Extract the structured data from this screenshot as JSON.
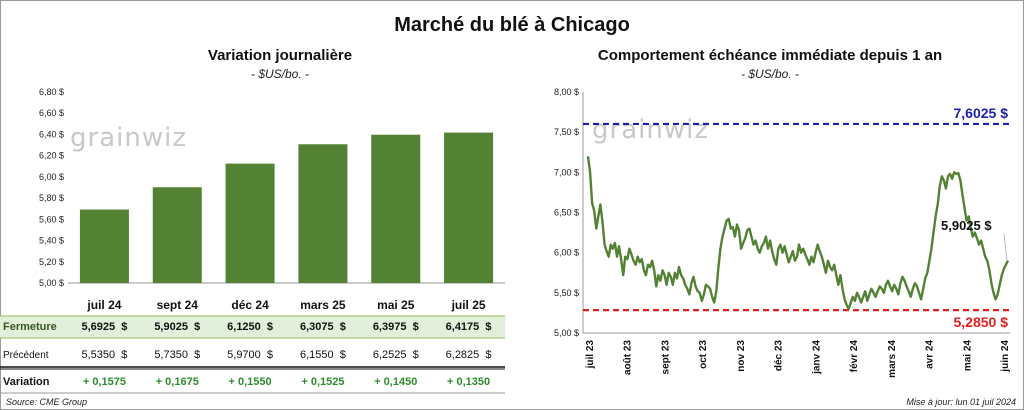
{
  "title": "Marché du blé à Chicago",
  "footer": {
    "source": "Source: CME Group",
    "update": "Mise à jour: lun 01 juil 2024"
  },
  "watermark": "grainwiz",
  "chart_data": [
    {
      "type": "bar",
      "title": "Variation journalière",
      "unit": "- $US/bo. -",
      "categories": [
        "juil 24",
        "sept 24",
        "déc 24",
        "mars 25",
        "mai 25",
        "juil 25"
      ],
      "values": [
        5.6925,
        5.9025,
        6.125,
        6.3075,
        6.3975,
        6.4175
      ],
      "ylim": [
        5.0,
        6.8
      ],
      "yticks": [
        "5,00 $",
        "5,20 $",
        "5,40 $",
        "5,60 $",
        "5,80 $",
        "6,00 $",
        "6,20 $",
        "6,40 $",
        "6,60 $",
        "6,80 $"
      ],
      "bar_color": "#548235",
      "table": {
        "rows": [
          {
            "label": "Fermeture",
            "values": [
              "5,6925  $",
              "5,9025  $",
              "6,1250  $",
              "6,3075  $",
              "6,3975  $",
              "6,4175  $"
            ]
          },
          {
            "label": "Précédent",
            "values": [
              "5,5350  $",
              "5,7350  $",
              "5,9700  $",
              "6,1550  $",
              "6,2525  $",
              "6,2825  $"
            ]
          },
          {
            "label": "Variation",
            "values": [
              "+ 0,1575",
              "+ 0,1675",
              "+ 0,1550",
              "+ 0,1525",
              "+ 0,1450",
              "+ 0,1350"
            ]
          }
        ]
      }
    },
    {
      "type": "line",
      "title": "Comportement  échéance immédiate depuis 1 an",
      "unit": "- $US/bo. -",
      "ylim": [
        5.0,
        8.0
      ],
      "yticks": [
        "5,00 $",
        "5,50 $",
        "6,00 $",
        "6,50 $",
        "7,00 $",
        "7,50 $",
        "8,00 $"
      ],
      "x_labels": [
        "juil 23",
        "août 23",
        "sept 23",
        "oct 23",
        "nov 23",
        "déc 23",
        "janv 24",
        "févr 24",
        "mars 24",
        "avr 24",
        "mai 24",
        "juin 24"
      ],
      "high": {
        "value": 7.6025,
        "label": "7,6025 $",
        "color": "#1f1faa"
      },
      "low": {
        "value": 5.285,
        "label": "5,2850 $",
        "color": "#e02020"
      },
      "last": {
        "value": 5.9025,
        "label": "5,9025 $"
      },
      "line_color": "#548235",
      "series": [
        {
          "values": [
            7.2,
            7.0,
            6.62,
            6.52,
            6.3,
            6.45,
            6.6,
            6.38,
            6.1,
            6.02,
            5.95,
            6.1,
            6.05,
            6.12,
            5.95,
            6.08,
            5.92,
            5.72,
            5.95,
            5.92,
            6.05,
            5.98,
            5.9,
            5.85,
            5.95,
            5.88,
            5.92,
            5.78,
            5.72,
            5.85,
            5.82,
            5.9,
            5.78,
            5.58,
            5.72,
            5.65,
            5.78,
            5.72,
            5.6,
            5.75,
            5.7,
            5.6,
            5.75,
            5.68,
            5.82,
            5.72,
            5.68,
            5.6,
            5.55,
            5.48,
            5.62,
            5.7,
            5.58,
            5.52,
            5.5,
            5.4,
            5.48,
            5.6,
            5.58,
            5.55,
            5.45,
            5.38,
            5.52,
            5.8,
            6.05,
            6.2,
            6.3,
            6.4,
            6.42,
            6.3,
            6.32,
            6.2,
            6.35,
            6.28,
            6.05,
            6.12,
            6.18,
            6.28,
            6.3,
            6.2,
            6.1,
            6.15,
            6.05,
            6.0,
            6.08,
            6.12,
            6.2,
            6.05,
            6.15,
            6.02,
            5.92,
            5.85,
            6.05,
            6.1,
            6.0,
            6.08,
            5.98,
            5.88,
            5.95,
            6.02,
            5.9,
            5.95,
            6.1,
            6.0,
            6.05,
            5.98,
            5.92,
            5.85,
            5.95,
            5.88,
            6.0,
            6.1,
            6.02,
            5.95,
            5.85,
            5.75,
            5.9,
            5.82,
            5.78,
            5.85,
            5.72,
            5.6,
            5.72,
            5.55,
            5.42,
            5.35,
            5.3,
            5.38,
            5.45,
            5.4,
            5.5,
            5.45,
            5.38,
            5.45,
            5.52,
            5.4,
            5.48,
            5.55,
            5.5,
            5.45,
            5.52,
            5.58,
            5.55,
            5.5,
            5.6,
            5.65,
            5.58,
            5.52,
            5.6,
            5.55,
            5.48,
            5.62,
            5.7,
            5.65,
            5.58,
            5.52,
            5.45,
            5.55,
            5.62,
            5.58,
            5.5,
            5.42,
            5.55,
            5.68,
            5.75,
            5.9,
            6.05,
            6.25,
            6.45,
            6.6,
            6.82,
            6.95,
            6.9,
            6.8,
            6.95,
            6.98,
            6.92,
            7.0,
            6.98,
            6.99,
            6.9,
            6.72,
            6.55,
            6.4,
            6.45,
            6.3,
            6.2,
            6.25,
            6.18,
            6.1,
            6.15,
            6.05,
            5.95,
            5.9,
            5.78,
            5.62,
            5.5,
            5.42,
            5.48,
            5.6,
            5.72,
            5.8,
            5.85,
            5.9025
          ]
        }
      ]
    }
  ]
}
